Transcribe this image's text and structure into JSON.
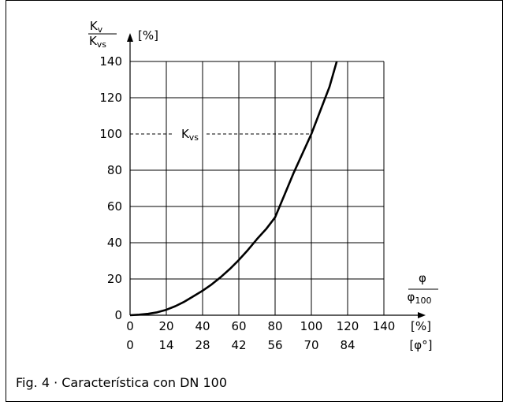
{
  "chart_data": {
    "type": "line",
    "title": "",
    "y_axis": {
      "label_top": "K",
      "label_top_sub": "v",
      "label_bottom": "K",
      "label_bottom_sub": "vs",
      "unit": "[%]",
      "ticks": [
        "0",
        "20",
        "40",
        "60",
        "80",
        "100",
        "120",
        "140"
      ],
      "ylim": [
        0,
        140
      ]
    },
    "x_axis": {
      "label_top": "φ",
      "label_bottom": "φ",
      "label_bottom_sub": "100",
      "ticks_percent": [
        "0",
        "20",
        "40",
        "60",
        "80",
        "100",
        "120",
        "140"
      ],
      "ticks_degrees": [
        "0",
        "14",
        "28",
        "42",
        "56",
        "70",
        "84"
      ],
      "unit_percent": "[%]",
      "unit_degrees": "[φ°]",
      "xlim": [
        0,
        140
      ]
    },
    "annotation": {
      "label": "K",
      "label_sub": "vs",
      "reference_x": 100,
      "reference_y": 100
    },
    "series": [
      {
        "x": [
          0,
          5,
          10,
          15,
          20,
          25,
          30,
          35,
          40,
          45,
          50,
          55,
          60,
          65,
          70,
          75,
          80,
          85,
          90,
          95,
          100,
          105,
          110,
          114
        ],
        "values": [
          0,
          0.3,
          0.8,
          1.6,
          3,
          5,
          7.5,
          10.5,
          13.5,
          17,
          21,
          25.5,
          30.5,
          36,
          42,
          47.5,
          54,
          66,
          78,
          89,
          100,
          113,
          126,
          140
        ]
      }
    ]
  },
  "caption": {
    "text": "Fig. 4  ·  Característica con DN 100"
  }
}
